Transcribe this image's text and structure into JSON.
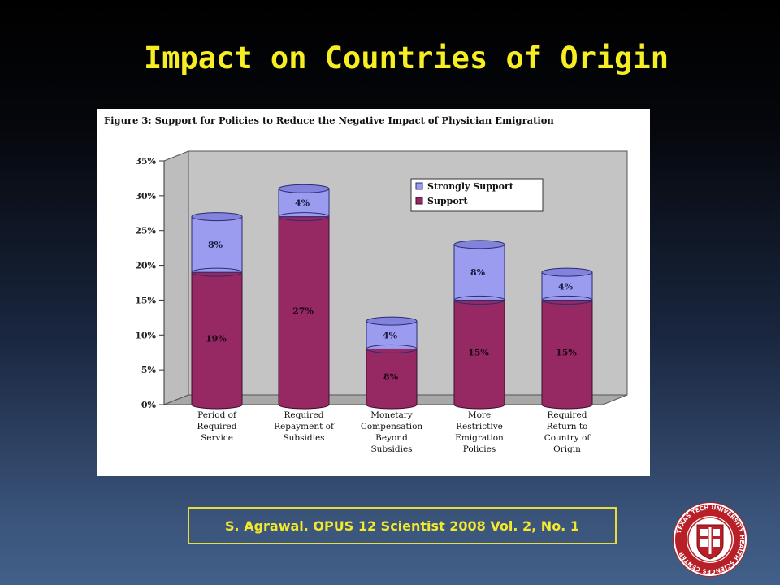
{
  "slide": {
    "title": "Impact on Countries of Origin",
    "citation": "S. Agrawal. OPUS 12 Scientist 2008 Vol. 2, No. 1",
    "seal_text": "TEXAS TECH UNIVERSITY HEALTH SCIENCES CENTER"
  },
  "colors": {
    "title": "#f6ee22",
    "support": "#962864",
    "strongly_support": "#9b9cf0",
    "citation_border": "#e8dd3a"
  },
  "chart_data": {
    "type": "bar",
    "stacked": true,
    "three_d": true,
    "title": "Figure 3: Support for Policies to Reduce the Negative Impact of Physician Emigration",
    "categories": [
      [
        "Period of",
        "Required",
        "Service"
      ],
      [
        "Required",
        "Repayment of",
        "Subsidies"
      ],
      [
        "Monetary",
        "Compensation",
        "Beyond",
        "Subsidies"
      ],
      [
        "More",
        "Restrictive",
        "Emigration",
        "Policies"
      ],
      [
        "Required",
        "Return to",
        "Country of",
        "Origin"
      ]
    ],
    "series": [
      {
        "name": "Support",
        "values": [
          19,
          27,
          8,
          15,
          15
        ],
        "labels": [
          "19%",
          "27%",
          "8%",
          "15%",
          "15%"
        ]
      },
      {
        "name": "Strongly Support",
        "values": [
          8,
          4,
          4,
          8,
          4
        ],
        "labels": [
          "8%",
          "4%",
          "4%",
          "8%",
          "4%"
        ]
      }
    ],
    "y_ticks": [
      "0%",
      "5%",
      "10%",
      "15%",
      "20%",
      "25%",
      "30%",
      "35%"
    ],
    "ylim": [
      0,
      35
    ],
    "legend_position": "top-right",
    "grid": false
  }
}
